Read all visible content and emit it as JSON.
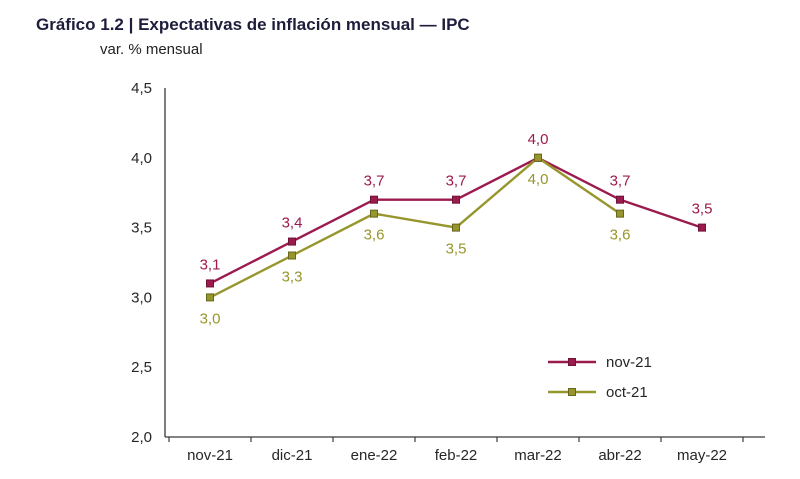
{
  "header": {
    "title": "Gráfico 1.2 | Expectativas de inflación mensual — IPC",
    "subtitle": "var. % mensual"
  },
  "chart_data": {
    "type": "line",
    "title": "Gráfico 1.2 | Expectativas de inflación mensual — IPC",
    "subtitle": "var. % mensual",
    "categories": [
      "nov-21",
      "dic-21",
      "ene-22",
      "feb-22",
      "mar-22",
      "abr-22",
      "may-22"
    ],
    "series": [
      {
        "name": "nov-21",
        "color": "#9b1b4e",
        "marker_stroke": "#6e1236",
        "label_position": "above",
        "values": [
          3.1,
          3.4,
          3.7,
          3.7,
          4.0,
          3.7,
          3.5
        ],
        "labels": [
          "3,1",
          "3,4",
          "3,7",
          "3,7",
          "4,0",
          "3,7",
          "3,5"
        ]
      },
      {
        "name": "oct-21",
        "color": "#96962d",
        "marker_stroke": "#66661c",
        "label_position": "below",
        "values": [
          3.0,
          3.3,
          3.6,
          3.5,
          4.0,
          3.6,
          null
        ],
        "labels": [
          "3,0",
          "3,3",
          "3,6",
          "3,5",
          "4,0",
          "3,6",
          null
        ]
      }
    ],
    "ylim": [
      2.0,
      4.5
    ],
    "ytick_step": 0.5,
    "ytick_labels": [
      "2,0",
      "2,5",
      "3,0",
      "3,5",
      "4,0",
      "4,5"
    ],
    "legend": [
      "nov-21",
      "oct-21"
    ],
    "legend_position": "inside-bottom-right",
    "grid": false,
    "decimal_separator": ",",
    "axis_color": "#3a3a3a",
    "text_color": "#262626",
    "background": "#ffffff"
  }
}
